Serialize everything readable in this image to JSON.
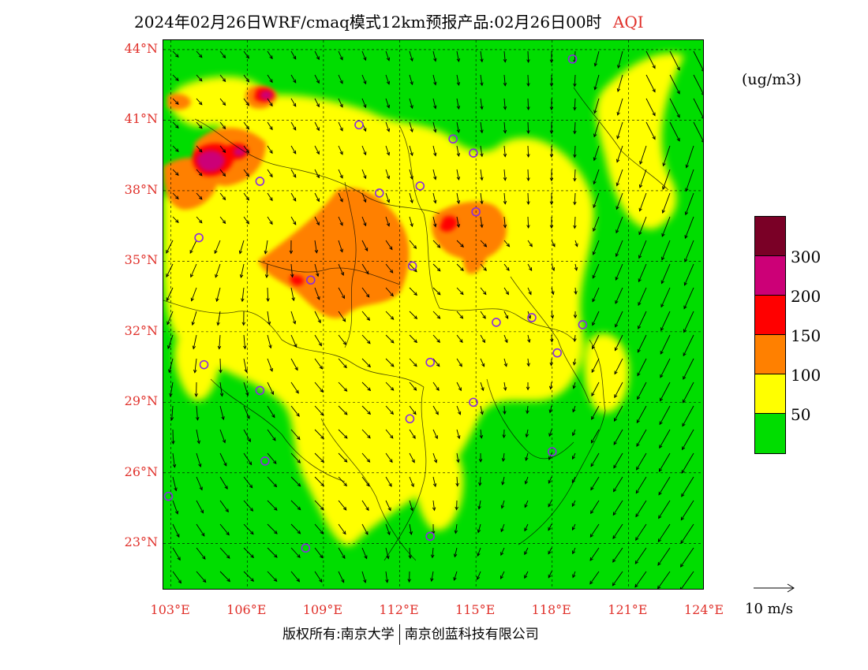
{
  "title": {
    "text": "2024年02月26日WRF/cmaq模式12km预报产品:02月26日00时",
    "variable": "AQI"
  },
  "unit": "(ug/m3)",
  "colors": {
    "title_variable": "#e0302a",
    "axis_labels": "#e0302a",
    "station_marker": "#8a2be2",
    "aqi_0_50": "#00dd00",
    "aqi_50_100": "#ffff00",
    "aqi_100_150": "#ff8000",
    "aqi_150_200": "#ff0000",
    "aqi_200_300": "#cc0077",
    "aqi_300_plus": "#7a0026"
  },
  "map": {
    "lat_labels": [
      "44°N",
      "41°N",
      "38°N",
      "35°N",
      "32°N",
      "29°N",
      "26°N",
      "23°N"
    ],
    "lon_labels": [
      "103°E",
      "106°E",
      "109°E",
      "112°E",
      "115°E",
      "118°E",
      "121°E",
      "124°E"
    ],
    "extent": {
      "lon_min": 102.7,
      "lon_max": 124.0,
      "lat_min": 21.0,
      "lat_max": 44.4
    },
    "stations": [
      {
        "lon": 118.8,
        "lat": 43.6
      },
      {
        "lon": 110.4,
        "lat": 40.8
      },
      {
        "lon": 114.1,
        "lat": 40.2
      },
      {
        "lon": 114.9,
        "lat": 39.6
      },
      {
        "lon": 106.5,
        "lat": 38.4
      },
      {
        "lon": 111.2,
        "lat": 37.9
      },
      {
        "lon": 112.8,
        "lat": 38.2
      },
      {
        "lon": 115.0,
        "lat": 37.1
      },
      {
        "lon": 104.1,
        "lat": 36.0
      },
      {
        "lon": 112.5,
        "lat": 34.8
      },
      {
        "lon": 108.5,
        "lat": 34.2
      },
      {
        "lon": 117.2,
        "lat": 32.6
      },
      {
        "lon": 115.8,
        "lat": 32.4
      },
      {
        "lon": 119.2,
        "lat": 32.3
      },
      {
        "lon": 118.2,
        "lat": 31.1
      },
      {
        "lon": 104.3,
        "lat": 30.6
      },
      {
        "lon": 113.2,
        "lat": 30.7
      },
      {
        "lon": 106.5,
        "lat": 29.5
      },
      {
        "lon": 114.9,
        "lat": 29.0
      },
      {
        "lon": 112.4,
        "lat": 28.3
      },
      {
        "lon": 118.0,
        "lat": 26.9
      },
      {
        "lon": 106.7,
        "lat": 26.5
      },
      {
        "lon": 102.9,
        "lat": 25.0
      },
      {
        "lon": 108.3,
        "lat": 22.8
      },
      {
        "lon": 113.2,
        "lat": 23.3
      }
    ]
  },
  "legend": {
    "colors": [
      "#7a0026",
      "#cc0077",
      "#ff0000",
      "#ff8000",
      "#ffff00",
      "#00dd00"
    ],
    "labels": [
      "300",
      "200",
      "150",
      "100",
      "50"
    ]
  },
  "wind_reference": "10 m/s",
  "footer": {
    "left": "版权所有:南京大学",
    "right": "南京创蓝科技有限公司"
  }
}
